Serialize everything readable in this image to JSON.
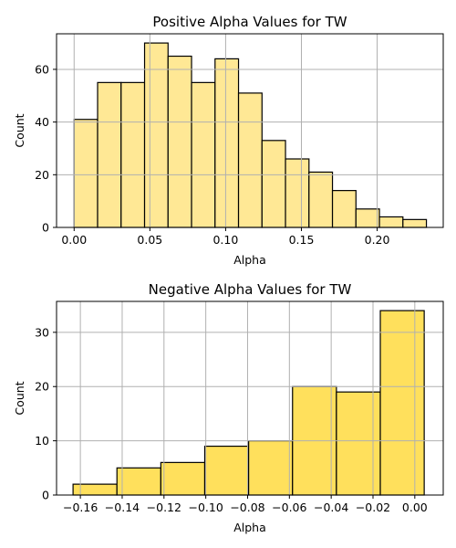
{
  "chart_data": [
    {
      "type": "bar",
      "title": "Positive Alpha Values for TW",
      "xlabel": "Alpha",
      "ylabel": "Count",
      "bar_color": "#ffe895",
      "xlim": [
        -0.0116,
        0.2436
      ],
      "ylim": [
        0,
        73.5
      ],
      "grid": true,
      "x_ticks": [
        0.0,
        0.05,
        0.1,
        0.15,
        0.2
      ],
      "x_tick_labels": [
        "0.00",
        "0.05",
        "0.10",
        "0.15",
        "0.20"
      ],
      "y_ticks": [
        0,
        20,
        40,
        60
      ],
      "y_tick_labels": [
        "0",
        "20",
        "40",
        "60"
      ],
      "bins": [
        {
          "x0": 0.0,
          "x1": 0.0155,
          "count": 41
        },
        {
          "x0": 0.0155,
          "x1": 0.031,
          "count": 55
        },
        {
          "x0": 0.031,
          "x1": 0.0465,
          "count": 55
        },
        {
          "x0": 0.0465,
          "x1": 0.062,
          "count": 70
        },
        {
          "x0": 0.062,
          "x1": 0.0775,
          "count": 65
        },
        {
          "x0": 0.0775,
          "x1": 0.093,
          "count": 55
        },
        {
          "x0": 0.093,
          "x1": 0.1085,
          "count": 64
        },
        {
          "x0": 0.1085,
          "x1": 0.124,
          "count": 51
        },
        {
          "x0": 0.124,
          "x1": 0.1395,
          "count": 33
        },
        {
          "x0": 0.1395,
          "x1": 0.155,
          "count": 26
        },
        {
          "x0": 0.155,
          "x1": 0.1705,
          "count": 21
        },
        {
          "x0": 0.1705,
          "x1": 0.186,
          "count": 14
        },
        {
          "x0": 0.186,
          "x1": 0.2015,
          "count": 7
        },
        {
          "x0": 0.2015,
          "x1": 0.217,
          "count": 4
        },
        {
          "x0": 0.217,
          "x1": 0.2325,
          "count": 3
        }
      ]
    },
    {
      "type": "bar",
      "title": "Negative Alpha Values for TW",
      "xlabel": "Alpha",
      "ylabel": "Count",
      "bar_color": "#ffe05c",
      "xlim": [
        -0.1714,
        0.0136
      ],
      "ylim": [
        0,
        35.7
      ],
      "grid": true,
      "x_ticks": [
        -0.16,
        -0.14,
        -0.12,
        -0.1,
        -0.08,
        -0.06,
        -0.04,
        -0.02,
        0.0
      ],
      "x_tick_labels": [
        "−0.16",
        "−0.14",
        "−0.12",
        "−0.10",
        "−0.08",
        "−0.06",
        "−0.04",
        "−0.02",
        "0.00"
      ],
      "y_ticks": [
        0,
        10,
        20,
        30
      ],
      "y_tick_labels": [
        "0",
        "10",
        "20",
        "30"
      ],
      "bins": [
        {
          "x0": -0.1635,
          "x1": -0.1425,
          "count": 2
        },
        {
          "x0": -0.1425,
          "x1": -0.1215,
          "count": 5
        },
        {
          "x0": -0.1215,
          "x1": -0.1005,
          "count": 6
        },
        {
          "x0": -0.1005,
          "x1": -0.0795,
          "count": 9
        },
        {
          "x0": -0.0795,
          "x1": -0.0585,
          "count": 10
        },
        {
          "x0": -0.0585,
          "x1": -0.0375,
          "count": 20
        },
        {
          "x0": -0.0375,
          "x1": -0.0165,
          "count": 19
        },
        {
          "x0": -0.0165,
          "x1": 0.0045,
          "count": 34
        }
      ]
    }
  ]
}
